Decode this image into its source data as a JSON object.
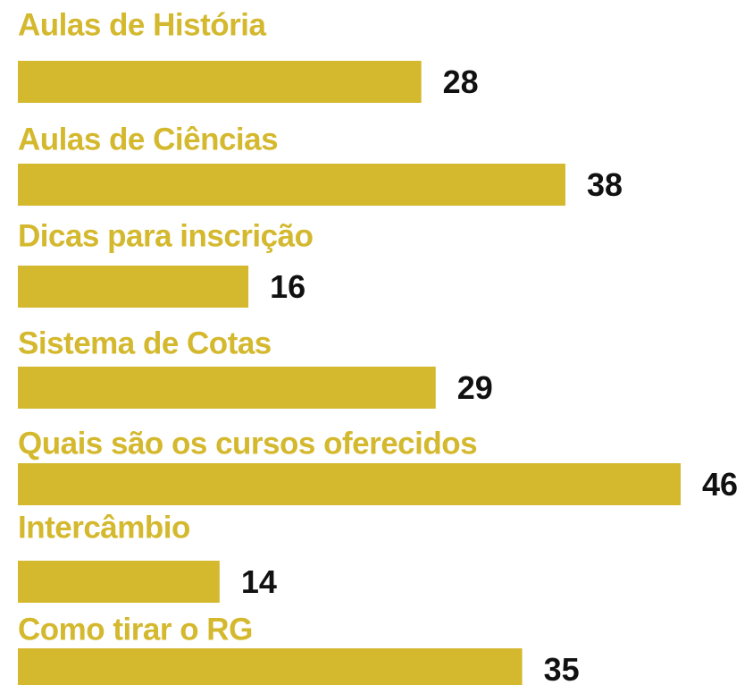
{
  "chart_data": {
    "type": "bar",
    "orientation": "horizontal",
    "categories": [
      "Aulas de História",
      "Aulas de Ciências",
      "Dicas para inscrição",
      "Sistema de Cotas",
      "Quais são os cursos oferecidos",
      "Intercâmbio",
      "Como tirar o RG"
    ],
    "values": [
      28,
      38,
      16,
      29,
      46,
      14,
      35
    ],
    "color": "#d4b82e",
    "label_color": "#d4b82e",
    "value_label_color": "#111111"
  }
}
